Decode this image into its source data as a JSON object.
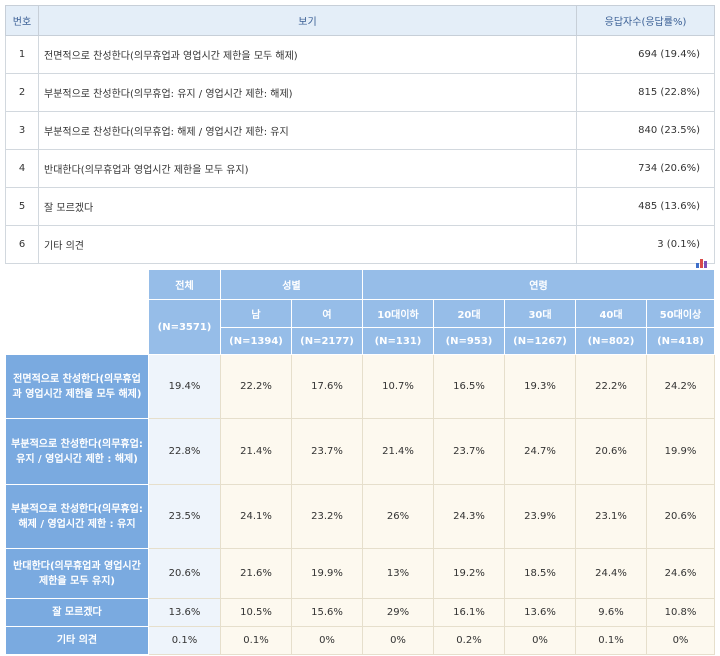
{
  "options": {
    "headers": {
      "no": "번호",
      "option": "보기",
      "responses": "응답자수(응답률%)"
    },
    "rows": [
      {
        "no": "1",
        "label": "전면적으로 찬성한다(의무휴업과 영업시간 제한을 모두 해제)",
        "value": "694 (19.4%)"
      },
      {
        "no": "2",
        "label": "부분적으로 찬성한다(의무휴업: 유지 / 영업시간 제한: 해제)",
        "value": "815 (22.8%)"
      },
      {
        "no": "3",
        "label": "부분적으로 찬성한다(의무휴업: 해제 / 영업시간 제한: 유지",
        "value": "840 (23.5%)"
      },
      {
        "no": "4",
        "label": "반대한다(의무휴업과 영업시간 제한을 모두 유지)",
        "value": "734 (20.6%)"
      },
      {
        "no": "5",
        "label": "잘 모르겠다",
        "value": "485 (13.6%)"
      },
      {
        "no": "6",
        "label": "기타 의견",
        "value": "3 (0.1%)"
      }
    ]
  },
  "cross": {
    "group_total": "전체",
    "group_gender": "성별",
    "group_age": "연령",
    "total_n": "(N=3571)",
    "columns": [
      {
        "label": "남",
        "n": "(N=1394)"
      },
      {
        "label": "여",
        "n": "(N=2177)"
      },
      {
        "label": "10대이하",
        "n": "(N=131)"
      },
      {
        "label": "20대",
        "n": "(N=953)"
      },
      {
        "label": "30대",
        "n": "(N=1267)"
      },
      {
        "label": "40대",
        "n": "(N=802)"
      },
      {
        "label": "50대이상",
        "n": "(N=418)"
      }
    ],
    "rows": [
      {
        "label": "전면적으로 찬성한다(의무휴업과 영업시간 제한을 모두 해제)",
        "total": "19.4%",
        "values": [
          "22.2%",
          "17.6%",
          "10.7%",
          "16.5%",
          "19.3%",
          "22.2%",
          "24.2%"
        ]
      },
      {
        "label": "부분적으로 찬성한다(의무휴업: 유지 / 영업시간 제한 : 해제)",
        "total": "22.8%",
        "values": [
          "21.4%",
          "23.7%",
          "21.4%",
          "23.7%",
          "24.7%",
          "20.6%",
          "19.9%"
        ]
      },
      {
        "label": "부분적으로 찬성한다(의무휴업: 해제 / 영업시간 제한 : 유지",
        "total": "23.5%",
        "values": [
          "24.1%",
          "23.2%",
          "26%",
          "24.3%",
          "23.9%",
          "23.1%",
          "20.6%"
        ]
      },
      {
        "label": "반대한다(의무휴업과 영업시간 제한을 모두 유지)",
        "total": "20.6%",
        "values": [
          "21.6%",
          "19.9%",
          "13%",
          "19.2%",
          "18.5%",
          "24.4%",
          "24.6%"
        ]
      },
      {
        "label": "잘 모르겠다",
        "total": "13.6%",
        "values": [
          "10.5%",
          "15.6%",
          "29%",
          "16.1%",
          "13.6%",
          "9.6%",
          "10.8%"
        ]
      },
      {
        "label": "기타 의견",
        "total": "0.1%",
        "values": [
          "0.1%",
          "0%",
          "0%",
          "0.2%",
          "0%",
          "0.1%",
          "0%"
        ]
      }
    ]
  },
  "icons": {
    "chart": "bar-chart-icon"
  }
}
